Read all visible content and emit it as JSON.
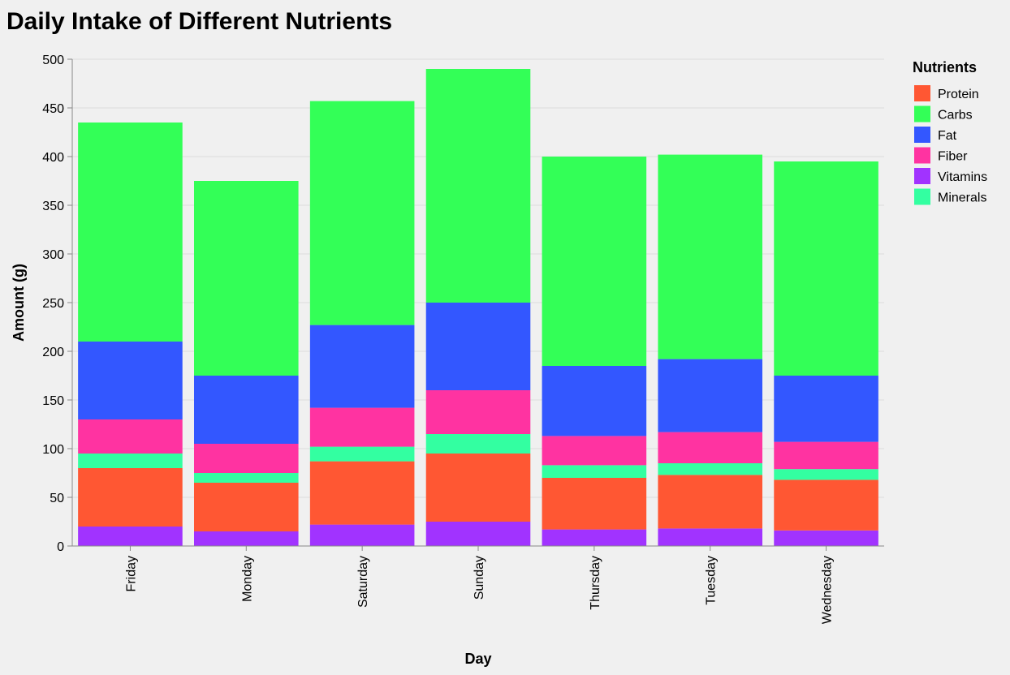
{
  "chart_data": {
    "type": "bar",
    "stacked": true,
    "title": "Daily Intake of Different Nutrients",
    "xlabel": "Day",
    "ylabel": "Amount (g)",
    "ylim": [
      0,
      500
    ],
    "yticks": [
      0,
      50,
      100,
      150,
      200,
      250,
      300,
      350,
      400,
      450,
      500
    ],
    "grid": true,
    "legend_title": "Nutrients",
    "legend_position": "right",
    "categories": [
      "Friday",
      "Monday",
      "Saturday",
      "Sunday",
      "Thursday",
      "Tuesday",
      "Wednesday"
    ],
    "series": [
      {
        "name": "Protein",
        "color": "#ff5733",
        "values": [
          60,
          50,
          65,
          70,
          53,
          55,
          52
        ]
      },
      {
        "name": "Carbs",
        "color": "#33ff57",
        "values": [
          225,
          200,
          230,
          240,
          215,
          210,
          220
        ]
      },
      {
        "name": "Fat",
        "color": "#3357ff",
        "values": [
          80,
          70,
          85,
          90,
          72,
          75,
          68
        ]
      },
      {
        "name": "Fiber",
        "color": "#ff33a1",
        "values": [
          35,
          30,
          40,
          45,
          30,
          32,
          28
        ]
      },
      {
        "name": "Vitamins",
        "color": "#a133ff",
        "values": [
          20,
          15,
          22,
          25,
          17,
          18,
          16
        ]
      },
      {
        "name": "Minerals",
        "color": "#33ffa1",
        "values": [
          15,
          10,
          15,
          20,
          13,
          12,
          11
        ]
      }
    ],
    "stack_order": [
      "Vitamins",
      "Protein",
      "Minerals",
      "Fiber",
      "Fat",
      "Carbs"
    ]
  }
}
